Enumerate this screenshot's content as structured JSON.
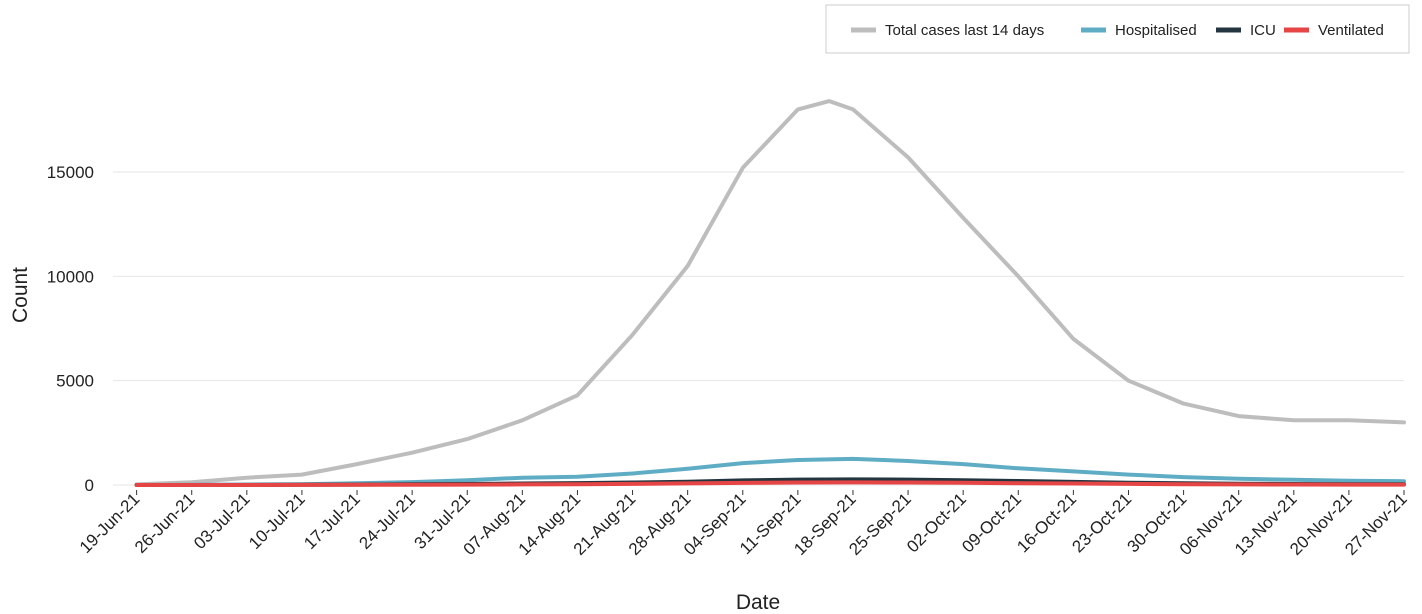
{
  "chart_data": {
    "type": "line",
    "xlabel": "Date",
    "ylabel": "Count",
    "x_ticks": [
      "19-Jun-21",
      "26-Jun-21",
      "03-Jul-21",
      "10-Jul-21",
      "17-Jul-21",
      "24-Jul-21",
      "31-Jul-21",
      "07-Aug-21",
      "14-Aug-21",
      "21-Aug-21",
      "28-Aug-21",
      "04-Sep-21",
      "11-Sep-21",
      "18-Sep-21",
      "25-Sep-21",
      "02-Oct-21",
      "09-Oct-21",
      "16-Oct-21",
      "23-Oct-21",
      "30-Oct-21",
      "06-Nov-21",
      "13-Nov-21",
      "20-Nov-21",
      "27-Nov-21"
    ],
    "y_ticks": [
      0,
      5000,
      10000,
      15000
    ],
    "ylim": [
      0,
      18500
    ],
    "grid": "horizontal",
    "legend_position": "top-right",
    "series": [
      {
        "name": "Total cases last 14 days",
        "color": "#bdbdbd",
        "x": [
          "19-Jun-21",
          "26-Jun-21",
          "03-Jul-21",
          "10-Jul-21",
          "17-Jul-21",
          "24-Jul-21",
          "31-Jul-21",
          "07-Aug-21",
          "14-Aug-21",
          "21-Aug-21",
          "28-Aug-21",
          "04-Sep-21",
          "11-Sep-21",
          "15-Sep-21",
          "18-Sep-21",
          "25-Sep-21",
          "02-Oct-21",
          "09-Oct-21",
          "16-Oct-21",
          "23-Oct-21",
          "30-Oct-21",
          "06-Nov-21",
          "13-Nov-21",
          "20-Nov-21",
          "27-Nov-21"
        ],
        "values": [
          30,
          130,
          350,
          500,
          1000,
          1550,
          2200,
          3100,
          4300,
          7200,
          10500,
          15200,
          18000,
          18400,
          18000,
          15700,
          12800,
          10000,
          7000,
          5000,
          3900,
          3300,
          3100,
          3100,
          3000
        ]
      },
      {
        "name": "Hospitalised",
        "color": "#5fadc4",
        "x": [
          "19-Jun-21",
          "26-Jun-21",
          "03-Jul-21",
          "10-Jul-21",
          "17-Jul-21",
          "24-Jul-21",
          "31-Jul-21",
          "07-Aug-21",
          "14-Aug-21",
          "21-Aug-21",
          "28-Aug-21",
          "04-Sep-21",
          "11-Sep-21",
          "18-Sep-21",
          "25-Sep-21",
          "02-Oct-21",
          "09-Oct-21",
          "16-Oct-21",
          "23-Oct-21",
          "30-Oct-21",
          "06-Nov-21",
          "13-Nov-21",
          "20-Nov-21",
          "27-Nov-21"
        ],
        "values": [
          0,
          10,
          20,
          40,
          80,
          140,
          230,
          350,
          400,
          550,
          780,
          1050,
          1200,
          1250,
          1150,
          1000,
          800,
          650,
          500,
          380,
          300,
          250,
          200,
          180
        ]
      },
      {
        "name": "ICU",
        "color": "#233640",
        "x": [
          "19-Jun-21",
          "26-Jun-21",
          "03-Jul-21",
          "10-Jul-21",
          "17-Jul-21",
          "24-Jul-21",
          "31-Jul-21",
          "07-Aug-21",
          "14-Aug-21",
          "21-Aug-21",
          "28-Aug-21",
          "04-Sep-21",
          "11-Sep-21",
          "18-Sep-21",
          "25-Sep-21",
          "02-Oct-21",
          "09-Oct-21",
          "16-Oct-21",
          "23-Oct-21",
          "30-Oct-21",
          "06-Nov-21",
          "13-Nov-21",
          "20-Nov-21",
          "27-Nov-21"
        ],
        "values": [
          0,
          0,
          5,
          10,
          20,
          35,
          50,
          70,
          90,
          120,
          160,
          220,
          260,
          270,
          260,
          230,
          190,
          150,
          110,
          80,
          60,
          50,
          40,
          35
        ]
      },
      {
        "name": "Ventilated",
        "color": "#e64545",
        "x": [
          "19-Jun-21",
          "26-Jun-21",
          "03-Jul-21",
          "10-Jul-21",
          "17-Jul-21",
          "24-Jul-21",
          "31-Jul-21",
          "07-Aug-21",
          "14-Aug-21",
          "21-Aug-21",
          "28-Aug-21",
          "04-Sep-21",
          "11-Sep-21",
          "18-Sep-21",
          "25-Sep-21",
          "02-Oct-21",
          "09-Oct-21",
          "16-Oct-21",
          "23-Oct-21",
          "30-Oct-21",
          "06-Nov-21",
          "13-Nov-21",
          "20-Nov-21",
          "27-Nov-21"
        ],
        "values": [
          0,
          0,
          0,
          5,
          8,
          15,
          20,
          30,
          40,
          55,
          75,
          100,
          120,
          125,
          120,
          105,
          85,
          70,
          55,
          40,
          30,
          25,
          20,
          18
        ]
      }
    ]
  }
}
